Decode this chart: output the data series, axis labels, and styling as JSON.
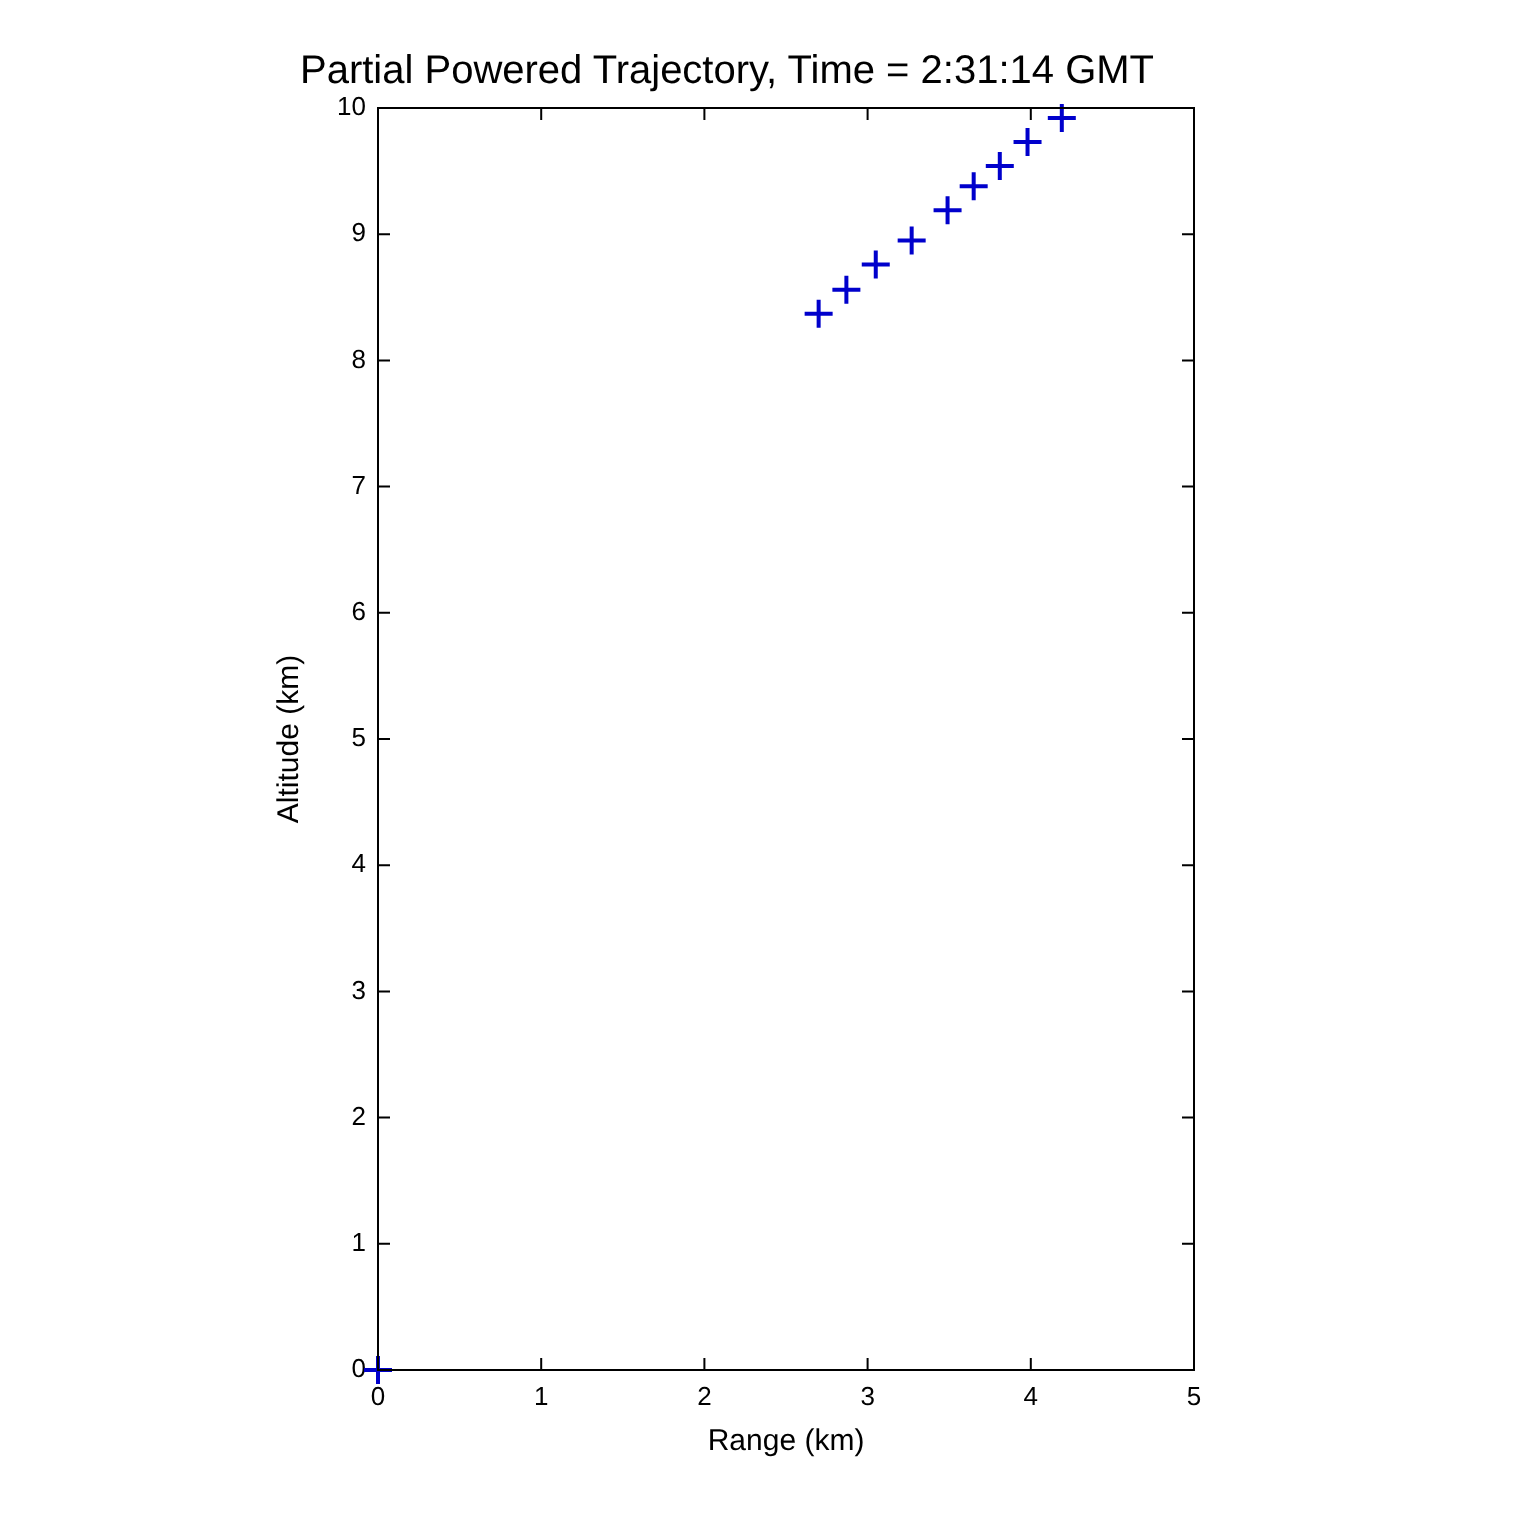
{
  "chart_data": {
    "type": "scatter",
    "title": "Partial Powered Trajectory, Time = 2:31:14 GMT",
    "xlabel": "Range (km)",
    "ylabel": "Altitude (km)",
    "x": [
      0,
      2.7,
      2.87,
      3.05,
      3.27,
      3.49,
      3.65,
      3.81,
      3.98,
      4.19
    ],
    "series": [
      {
        "color": "#0000cc",
        "values": [
          0,
          8.37,
          8.56,
          8.76,
          8.95,
          9.19,
          9.38,
          9.54,
          9.73,
          9.92
        ]
      }
    ],
    "xlim": [
      0,
      5
    ],
    "xticks": [
      0,
      1,
      2,
      3,
      4,
      5
    ],
    "ylim": [
      0,
      10
    ],
    "yticks": [
      0,
      1,
      2,
      3,
      4,
      5,
      6,
      7,
      8,
      9,
      10
    ],
    "marker": "cross",
    "grid": false,
    "legend": false
  }
}
